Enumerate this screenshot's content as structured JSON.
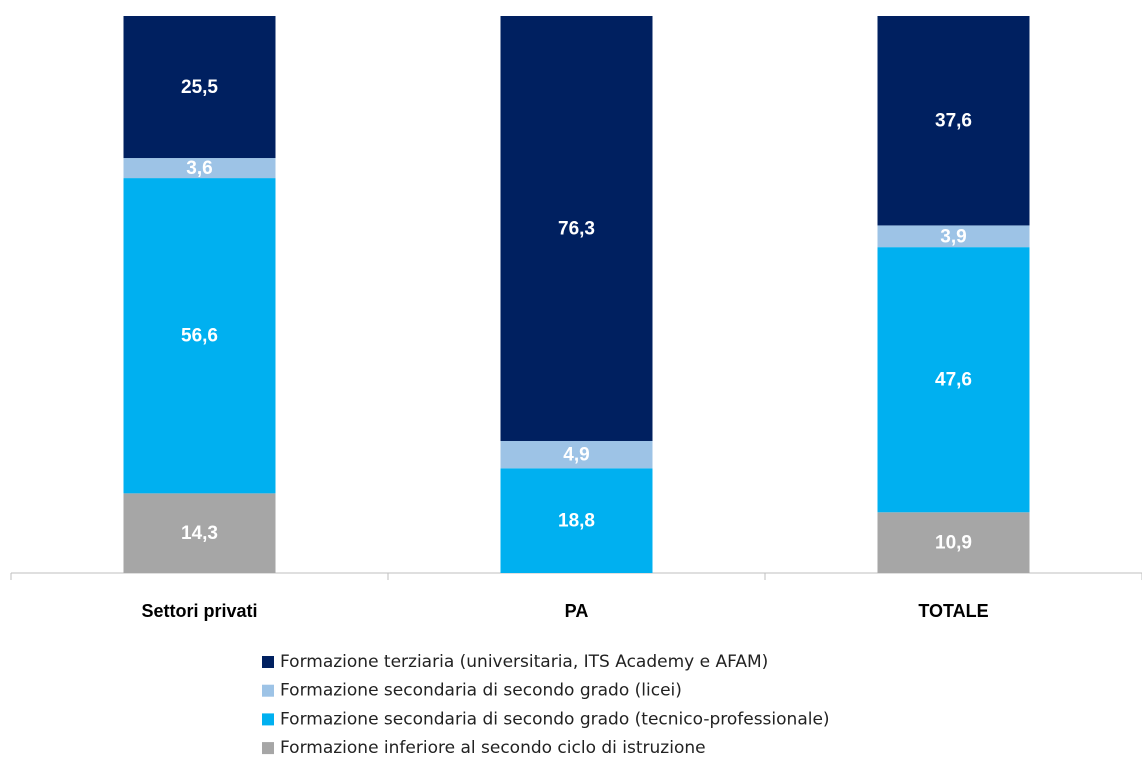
{
  "chart_data": {
    "type": "stacked_bar",
    "categories": [
      "Settori privati",
      "PA",
      "TOTALE"
    ],
    "ylim": [
      0,
      100
    ],
    "series": [
      {
        "name": "Formazione terziaria (universitaria, ITS Academy e AFAM)",
        "color": "#002060",
        "values": [
          25.5,
          76.3,
          37.6
        ],
        "value_labels": [
          "25,5",
          "76,3",
          "37,6"
        ]
      },
      {
        "name": "Formazione secondaria di secondo grado (licei)",
        "color": "#9dc3e6",
        "values": [
          3.6,
          4.9,
          3.9
        ],
        "value_labels": [
          "3,6",
          "4,9",
          "3,9"
        ]
      },
      {
        "name": "Formazione secondaria di secondo grado (tecnico-professionale)",
        "color": "#00b0f0",
        "values": [
          56.6,
          18.8,
          47.6
        ],
        "value_labels": [
          "56,6",
          "18,8",
          "47,6"
        ]
      },
      {
        "name": "Formazione inferiore al secondo ciclo di istruzione",
        "color": "#a6a6a6",
        "values": [
          14.3,
          null,
          10.9
        ],
        "value_labels": [
          "14,3",
          null,
          "10,9"
        ]
      }
    ]
  }
}
